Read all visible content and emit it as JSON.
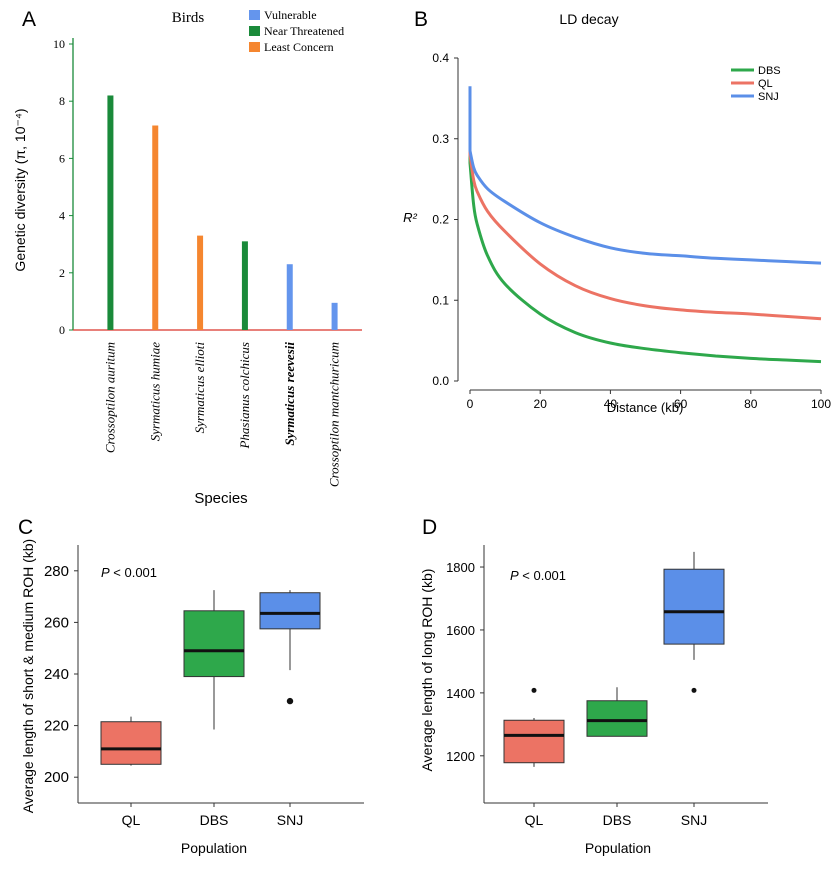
{
  "panel_labels": {
    "a": "A",
    "b": "B",
    "c": "C",
    "d": "D"
  },
  "colors": {
    "vulnerable": "#6495ED",
    "near_threatened": "#1a8a3a",
    "least_concern": "#F5862F",
    "dbs": "#2EA84B",
    "ql": "#EC7364",
    "snj": "#5B8FE8",
    "axis_red": "#d9352b"
  },
  "chart_data": [
    {
      "panel": "A",
      "type": "bar",
      "title": "Birds",
      "xlabel": "Species",
      "ylabel": "Genetic diversity (π, 10⁻⁴)",
      "ylim": [
        0,
        10
      ],
      "yticks": [
        "0",
        "2",
        "4",
        "6",
        "8",
        "10"
      ],
      "categories": [
        "Crossoptilon auritum",
        "Syrmaticus humiae",
        "Syrmaticus ellioti",
        "Phasianus colchicus",
        "Syrmaticus reevesii",
        "Crossoptilon mantchuricum"
      ],
      "values": [
        8.2,
        7.15,
        3.3,
        3.1,
        2.3,
        0.95
      ],
      "status": [
        "Near Threatened",
        "Least Concern",
        "Least Concern",
        "Near Threatened",
        "Vulnerable",
        "Vulnerable"
      ],
      "legend": [
        "Vulnerable",
        "Near Threatened",
        "Least Concern"
      ],
      "legend_position": "top-right"
    },
    {
      "panel": "B",
      "type": "line",
      "title": "LD decay",
      "xlabel": "Distance (kb)",
      "ylabel": "R²",
      "xlim": [
        0,
        100
      ],
      "ylim": [
        0,
        0.4
      ],
      "xticks": [
        "0",
        "20",
        "40",
        "60",
        "80",
        "100"
      ],
      "yticks": [
        "0.0",
        "0.1",
        "0.2",
        "0.3",
        "0.4"
      ],
      "legend_position": "top-right",
      "x": [
        0,
        1,
        2,
        5,
        10,
        20,
        30,
        40,
        50,
        60,
        70,
        80,
        90,
        100
      ],
      "series": [
        {
          "name": "DBS",
          "start_peak": 0.315,
          "values": [
            0.27,
            0.22,
            0.195,
            0.155,
            0.12,
            0.083,
            0.06,
            0.047,
            0.04,
            0.035,
            0.031,
            0.028,
            0.026,
            0.024
          ]
        },
        {
          "name": "QL",
          "start_peak": 0.345,
          "values": [
            0.28,
            0.25,
            0.235,
            0.21,
            0.185,
            0.145,
            0.118,
            0.102,
            0.093,
            0.088,
            0.085,
            0.083,
            0.08,
            0.077
          ]
        },
        {
          "name": "SNJ",
          "start_peak": 0.365,
          "values": [
            0.285,
            0.265,
            0.255,
            0.238,
            0.222,
            0.196,
            0.178,
            0.165,
            0.158,
            0.155,
            0.152,
            0.15,
            0.148,
            0.146
          ]
        }
      ]
    },
    {
      "panel": "C",
      "type": "box",
      "xlabel": "Population",
      "ylabel": "Average length of short & medium ROH (kb)",
      "annotation_p": "P",
      "annotation_rest": " < 0.001",
      "ylim": [
        190,
        290
      ],
      "yticks": [
        "200",
        "220",
        "240",
        "260",
        "280"
      ],
      "categories": [
        "QL",
        "DBS",
        "SNJ"
      ],
      "boxes": [
        {
          "name": "QL",
          "min": 204.5,
          "q1": 205,
          "median": 211,
          "q3": 221.5,
          "max": 223.5,
          "outliers": []
        },
        {
          "name": "DBS",
          "min": 218.5,
          "q1": 239,
          "median": 249,
          "q3": 264.5,
          "max": 272.5,
          "outliers": []
        },
        {
          "name": "SNJ",
          "min": 241.5,
          "q1": 257.5,
          "median": 263.5,
          "q3": 271.5,
          "max": 272.5,
          "outliers": [
            229.5
          ]
        }
      ]
    },
    {
      "panel": "D",
      "type": "box",
      "xlabel": "Population",
      "ylabel": "Average length of long ROH (kb)",
      "annotation_p": "P",
      "annotation_rest": " < 0.001",
      "ylim": [
        1050,
        1870
      ],
      "yticks": [
        "1200",
        "1400",
        "1600",
        "1800"
      ],
      "categories": [
        "QL",
        "DBS",
        "SNJ"
      ],
      "boxes": [
        {
          "name": "QL",
          "min": 1165,
          "q1": 1178,
          "median": 1265,
          "q3": 1313,
          "max": 1320,
          "outliers": [
            1408
          ]
        },
        {
          "name": "DBS",
          "min": 1262,
          "q1": 1262,
          "median": 1312,
          "q3": 1375,
          "max": 1418,
          "outliers": []
        },
        {
          "name": "SNJ",
          "min": 1505,
          "q1": 1555,
          "median": 1658,
          "q3": 1793,
          "max": 1848,
          "outliers": [
            1408
          ]
        }
      ]
    }
  ]
}
